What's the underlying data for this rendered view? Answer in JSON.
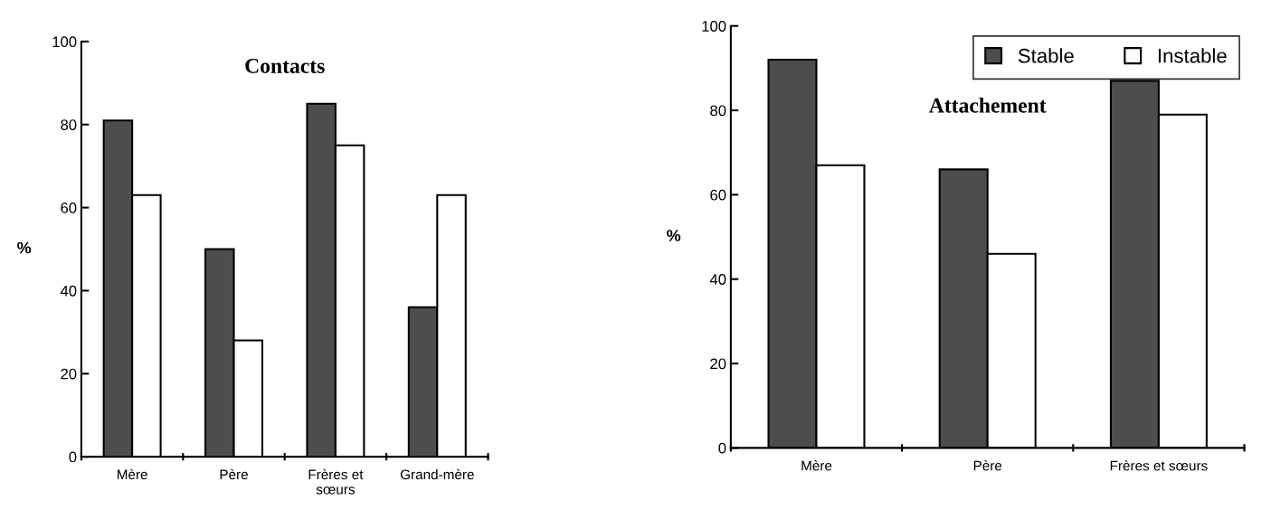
{
  "chart_data": [
    {
      "type": "bar",
      "title": "Contacts",
      "ylabel": "%",
      "categories": [
        "Mère",
        "Père",
        "Frères et\nsœurs",
        "Grand-mère"
      ],
      "series": [
        {
          "color": "#4d4d4d",
          "values": [
            81,
            50,
            85,
            36
          ]
        },
        {
          "color": "#ffffff",
          "values": [
            63,
            28,
            75,
            63
          ]
        }
      ],
      "ylim": [
        0,
        100
      ],
      "yticks": [
        0,
        20,
        40,
        60,
        80,
        100
      ],
      "grid": false,
      "legend": false
    },
    {
      "type": "bar",
      "title": "Attachement",
      "ylabel": "%",
      "categories": [
        "Mère",
        "Père",
        "Frères et sœurs"
      ],
      "series": [
        {
          "name": "Stable",
          "color": "#4d4d4d",
          "values": [
            92,
            66,
            87
          ]
        },
        {
          "name": "Instable",
          "color": "#ffffff",
          "values": [
            67,
            46,
            79
          ]
        }
      ],
      "ylim": [
        0,
        100
      ],
      "yticks": [
        0,
        20,
        40,
        60,
        80,
        100
      ],
      "grid": false,
      "legend": "top right"
    }
  ]
}
